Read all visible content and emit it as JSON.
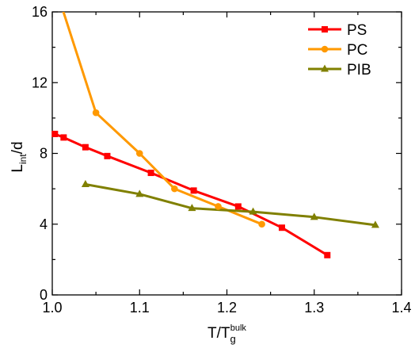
{
  "chart_data": {
    "type": "line",
    "title": "",
    "xlabel": {
      "main": "T/T",
      "sub": "g",
      "sup": "bulk"
    },
    "ylabel": {
      "main": "L",
      "sub": "int",
      "tail": "/d"
    },
    "xlim": [
      1.0,
      1.4
    ],
    "ylim": [
      0,
      16
    ],
    "xticks": [
      "1.0",
      "1.1",
      "1.2",
      "1.3",
      "1.4"
    ],
    "yticks": [
      "0",
      "4",
      "8",
      "12",
      "16"
    ],
    "grid": false,
    "legend_position": "top-right",
    "series": [
      {
        "name": "PS",
        "color": "#ff0000",
        "marker": "square",
        "x": [
          1.003,
          1.013,
          1.038,
          1.063,
          1.113,
          1.162,
          1.213,
          1.263,
          1.315
        ],
        "y": [
          9.1,
          8.9,
          8.35,
          7.85,
          6.9,
          5.9,
          5.0,
          3.8,
          2.25
        ]
      },
      {
        "name": "PC",
        "color": "#ff9900",
        "marker": "circle",
        "x": [
          1.003,
          1.05,
          1.1,
          1.14,
          1.19,
          1.24
        ],
        "y": [
          17.5,
          10.3,
          8.0,
          6.0,
          5.0,
          4.0
        ]
      },
      {
        "name": "PIB",
        "color": "#808000",
        "marker": "triangle",
        "x": [
          1.038,
          1.1,
          1.16,
          1.23,
          1.3,
          1.37
        ],
        "y": [
          6.25,
          5.7,
          4.9,
          4.7,
          4.4,
          3.95
        ]
      }
    ]
  }
}
